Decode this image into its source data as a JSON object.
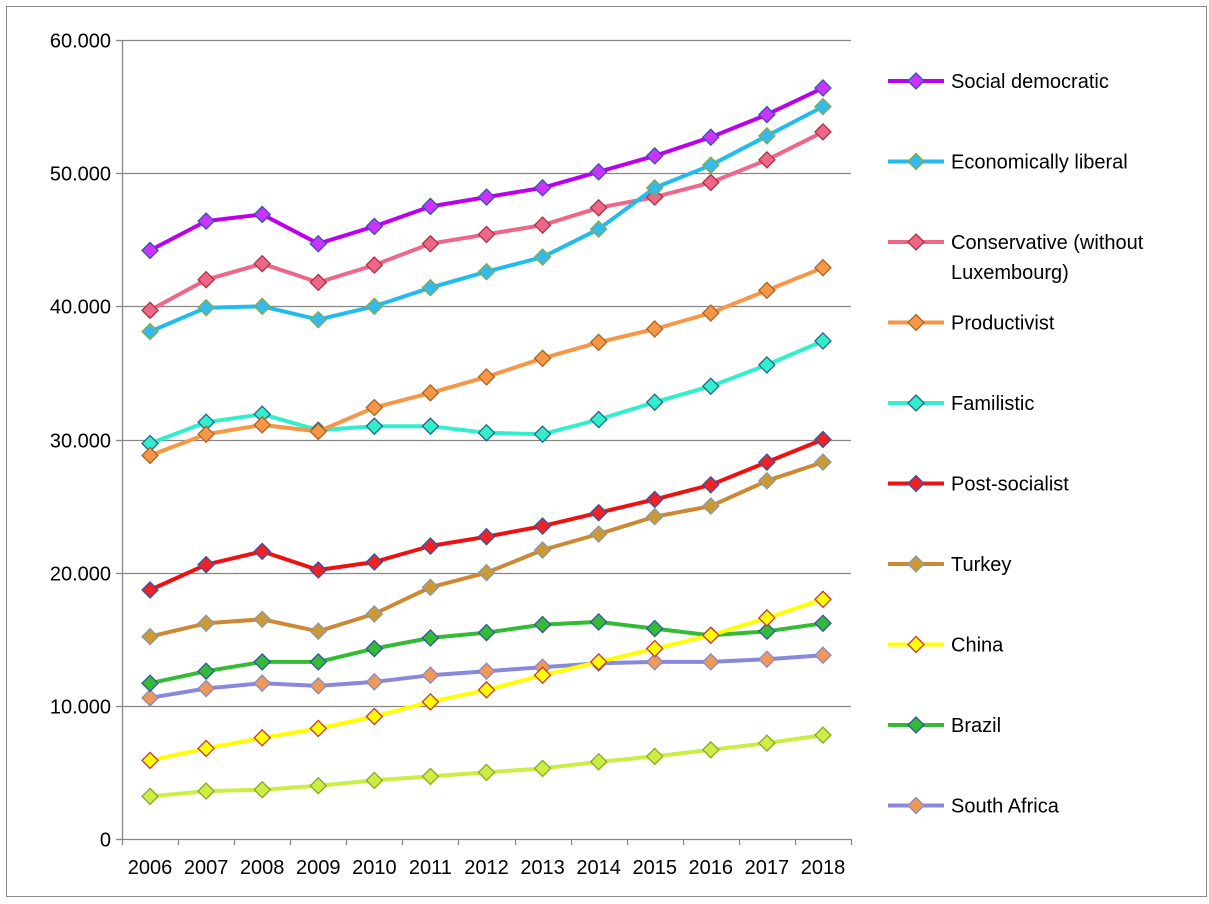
{
  "chart_data": {
    "type": "line",
    "title": "",
    "xlabel": "",
    "ylabel": "",
    "categories": [
      "2006",
      "2007",
      "2008",
      "2009",
      "2010",
      "2011",
      "2012",
      "2013",
      "2014",
      "2015",
      "2016",
      "2017",
      "2018"
    ],
    "ylim": [
      0,
      60000
    ],
    "yticks": [
      0,
      10000,
      20000,
      30000,
      40000,
      50000,
      60000
    ],
    "ytick_labels": [
      "0",
      "10.000",
      "20.000",
      "30.000",
      "40.000",
      "50.000",
      "60.000"
    ],
    "grid": "horizontal major gridlines",
    "legend_position": "right",
    "series": [
      {
        "name": "Social democratic",
        "color": "#bb00ee",
        "marker_fill": "#cc33ff",
        "marker_edge": "#3355aa",
        "values": [
          44200,
          46400,
          46900,
          44700,
          46000,
          47500,
          48200,
          48900,
          50100,
          51300,
          52700,
          54400,
          56400
        ]
      },
      {
        "name": "Economically liberal",
        "color": "#22bbee",
        "marker_fill": "#33bbee",
        "marker_edge": "#88aa44",
        "values": [
          38100,
          39900,
          40000,
          39000,
          40000,
          41400,
          42600,
          43700,
          45800,
          48900,
          50600,
          52800,
          55000
        ]
      },
      {
        "name": "Conservative (without Luxembourg)",
        "color": "#ee6688",
        "marker_fill": "#ee6688",
        "marker_edge": "#aa3344",
        "values": [
          39700,
          42000,
          43200,
          41800,
          43100,
          44700,
          45400,
          46100,
          47400,
          48200,
          49300,
          51000,
          53100
        ]
      },
      {
        "name": "Productivist",
        "color": "#f79646",
        "marker_fill": "#f79646",
        "marker_edge": "#aa6622",
        "values": [
          28800,
          30400,
          31100,
          30600,
          32400,
          33500,
          34700,
          36100,
          37300,
          38300,
          39500,
          41200,
          42900
        ]
      },
      {
        "name": "Familistic",
        "color": "#33eecc",
        "marker_fill": "#33eecc",
        "marker_edge": "#226688",
        "values": [
          29700,
          31300,
          31900,
          30700,
          31000,
          31000,
          30500,
          30400,
          31500,
          32800,
          34000,
          35600,
          37400
        ]
      },
      {
        "name": "Post-socialist",
        "color": "#ee1111",
        "marker_fill": "#ee2222",
        "marker_edge": "#3355aa",
        "values": [
          18700,
          20600,
          21600,
          20200,
          20800,
          22000,
          22700,
          23500,
          24500,
          25500,
          26600,
          28300,
          30000
        ]
      },
      {
        "name": "Turkey",
        "color": "#cc8833",
        "marker_fill": "#cc9933",
        "marker_edge": "#8899aa",
        "values": [
          15200,
          16200,
          16500,
          15600,
          16900,
          18900,
          20000,
          21700,
          22900,
          24200,
          25000,
          26900,
          28300
        ]
      },
      {
        "name": "China",
        "color": "#ffff00",
        "marker_fill": "#ffff00",
        "marker_edge": "#cc3333",
        "values": [
          5900,
          6800,
          7600,
          8300,
          9200,
          10300,
          11200,
          12300,
          13300,
          14300,
          15300,
          16600,
          18000
        ]
      },
      {
        "name": "Brazil",
        "color": "#33bb33",
        "marker_fill": "#33bb33",
        "marker_edge": "#3355aa",
        "values": [
          11700,
          12600,
          13300,
          13300,
          14300,
          15100,
          15500,
          16100,
          16300,
          15800,
          15300,
          15600,
          16200
        ]
      },
      {
        "name": "South Africa",
        "color": "#8888dd",
        "marker_fill": "#ee9955",
        "marker_edge": "#8888cc",
        "values": [
          10600,
          11300,
          11700,
          11500,
          11800,
          12300,
          12600,
          12900,
          13200,
          13300,
          13300,
          13500,
          13800
        ]
      },
      {
        "name": "",
        "color": "#ccee44",
        "marker_fill": "#ccee44",
        "marker_edge": "#88aa22",
        "in_legend": false,
        "values": [
          3200,
          3600,
          3700,
          4000,
          4400,
          4700,
          5000,
          5300,
          5800,
          6200,
          6700,
          7200,
          7800
        ]
      }
    ]
  }
}
